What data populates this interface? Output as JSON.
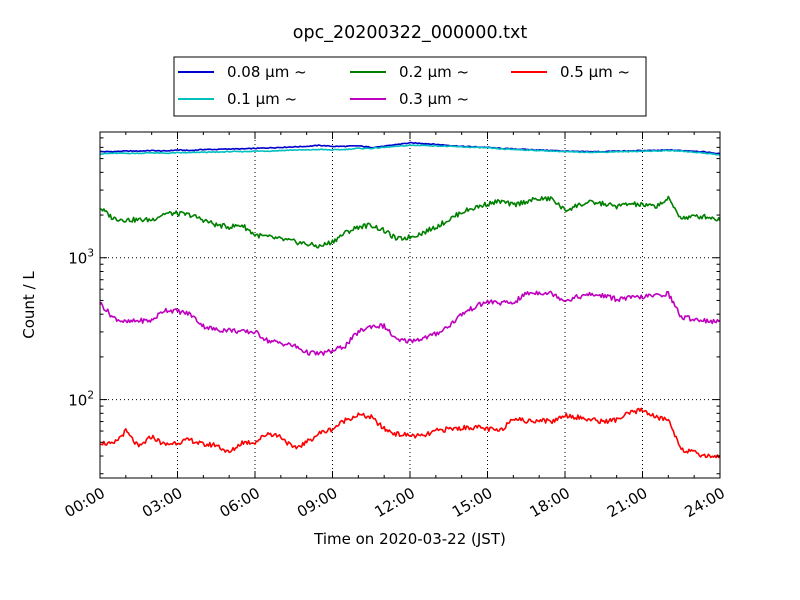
{
  "chart_data": {
    "type": "line",
    "title": "opc_20200322_000000.txt",
    "xlabel": "Time on 2020-03-22 (JST)",
    "ylabel": "Count / L",
    "yscale": "log",
    "xlim": [
      0,
      24
    ],
    "ylim": [
      28,
      7700
    ],
    "grid": true,
    "legend_position": "top-center",
    "x_ticks": [
      {
        "value": 0,
        "label": "00:00"
      },
      {
        "value": 3,
        "label": "03:00"
      },
      {
        "value": 6,
        "label": "06:00"
      },
      {
        "value": 9,
        "label": "09:00"
      },
      {
        "value": 12,
        "label": "12:00"
      },
      {
        "value": 15,
        "label": "15:00"
      },
      {
        "value": 18,
        "label": "18:00"
      },
      {
        "value": 21,
        "label": "21:00"
      },
      {
        "value": 24,
        "label": "24:00"
      }
    ],
    "y_ticks": [
      {
        "value": 100,
        "base": "10",
        "exp": "2"
      },
      {
        "value": 1000,
        "base": "10",
        "exp": "3"
      }
    ],
    "x": [
      0,
      0.5,
      1,
      1.5,
      2,
      2.5,
      3,
      3.5,
      4,
      4.5,
      5,
      5.5,
      6,
      6.5,
      7,
      7.5,
      8,
      8.5,
      9,
      9.5,
      10,
      10.5,
      11,
      11.5,
      12,
      12.5,
      13,
      13.5,
      14,
      14.5,
      15,
      15.5,
      16,
      16.5,
      17,
      17.5,
      18,
      18.5,
      19,
      19.5,
      20,
      20.5,
      21,
      21.5,
      22,
      22.5,
      23,
      23.5,
      24
    ],
    "series": [
      {
        "name": "0.08 μm ~",
        "color": "#0000cc",
        "values": [
          5600,
          5600,
          5650,
          5650,
          5700,
          5650,
          5750,
          5700,
          5800,
          5800,
          5850,
          5850,
          5900,
          5950,
          6000,
          6050,
          6100,
          6200,
          6100,
          6100,
          6150,
          6000,
          6100,
          6300,
          6450,
          6400,
          6300,
          6200,
          6100,
          6050,
          6000,
          5900,
          5850,
          5800,
          5750,
          5700,
          5650,
          5600,
          5600,
          5600,
          5650,
          5650,
          5700,
          5700,
          5750,
          5700,
          5650,
          5550,
          5400
        ]
      },
      {
        "name": "0.1 μm ~",
        "color": "#00bfbf",
        "values": [
          5400,
          5450,
          5450,
          5450,
          5500,
          5450,
          5500,
          5500,
          5550,
          5550,
          5600,
          5600,
          5650,
          5650,
          5700,
          5750,
          5750,
          5800,
          5750,
          5800,
          5900,
          5900,
          6000,
          6100,
          6200,
          6200,
          6150,
          6100,
          6050,
          6000,
          5950,
          5850,
          5800,
          5750,
          5700,
          5650,
          5600,
          5550,
          5550,
          5550,
          5600,
          5600,
          5650,
          5650,
          5700,
          5650,
          5550,
          5450,
          5300
        ]
      },
      {
        "name": "0.2 μm ~",
        "color": "#008000",
        "values": [
          2250,
          1900,
          1850,
          1850,
          1850,
          2050,
          2050,
          2000,
          1850,
          1700,
          1650,
          1700,
          1450,
          1400,
          1350,
          1300,
          1250,
          1200,
          1300,
          1500,
          1650,
          1700,
          1550,
          1350,
          1400,
          1500,
          1650,
          1850,
          2100,
          2250,
          2400,
          2500,
          2350,
          2500,
          2600,
          2600,
          2150,
          2350,
          2450,
          2400,
          2300,
          2400,
          2350,
          2300,
          2600,
          1900,
          1950,
          1950,
          1850
        ]
      },
      {
        "name": "0.3 μm ~",
        "color": "#bf00bf",
        "values": [
          480,
          380,
          350,
          360,
          360,
          430,
          420,
          400,
          330,
          310,
          310,
          300,
          300,
          260,
          250,
          240,
          215,
          210,
          220,
          240,
          300,
          330,
          330,
          260,
          260,
          270,
          290,
          330,
          400,
          450,
          490,
          480,
          480,
          560,
          570,
          560,
          500,
          530,
          550,
          540,
          510,
          520,
          530,
          540,
          560,
          380,
          370,
          360,
          350
        ]
      },
      {
        "name": "0.5 μm ~",
        "color": "#ff0000",
        "values": [
          50,
          48,
          60,
          46,
          55,
          48,
          50,
          52,
          48,
          48,
          42,
          50,
          50,
          58,
          55,
          45,
          50,
          58,
          62,
          72,
          78,
          75,
          62,
          57,
          56,
          55,
          60,
          62,
          63,
          64,
          62,
          60,
          75,
          70,
          72,
          70,
          78,
          75,
          72,
          70,
          72,
          80,
          85,
          75,
          72,
          45,
          42,
          40,
          40
        ]
      }
    ]
  }
}
